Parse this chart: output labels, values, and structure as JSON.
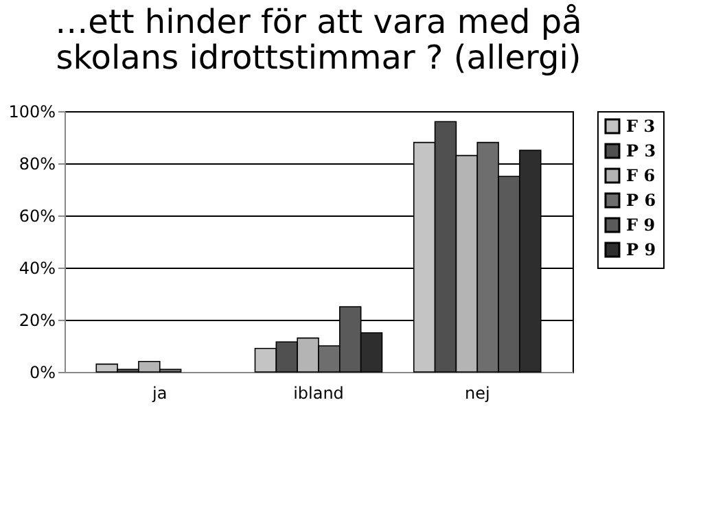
{
  "chart_data": {
    "type": "bar",
    "title": [
      "…ett hinder för att vara med på",
      "skolans idrottstimmar ? (allergi)"
    ],
    "categories": [
      "ja",
      "ibland",
      "nej"
    ],
    "series": [
      {
        "name": "F 3",
        "color": "#c4c4c4",
        "values": [
          3,
          9,
          88
        ]
      },
      {
        "name": "P 3",
        "color": "#505050",
        "values": [
          1,
          11.5,
          96
        ]
      },
      {
        "name": "F 6",
        "color": "#b4b4b4",
        "values": [
          4,
          13,
          83
        ]
      },
      {
        "name": "P 6",
        "color": "#6e6e6e",
        "values": [
          1,
          10,
          88
        ]
      },
      {
        "name": "F 9",
        "color": "#5a5a5a",
        "values": [
          null,
          25,
          75
        ]
      },
      {
        "name": "P 9",
        "color": "#2e2e2e",
        "values": [
          null,
          15,
          85
        ]
      }
    ],
    "ylim": [
      0,
      100
    ],
    "yticks": [
      {
        "value": 0,
        "label": "0%"
      },
      {
        "value": 20,
        "label": "20%"
      },
      {
        "value": 40,
        "label": "40%"
      },
      {
        "value": 60,
        "label": "60%"
      },
      {
        "value": 80,
        "label": "80%"
      },
      {
        "value": 100,
        "label": "100%"
      }
    ],
    "grid": "y",
    "legend": "right"
  }
}
